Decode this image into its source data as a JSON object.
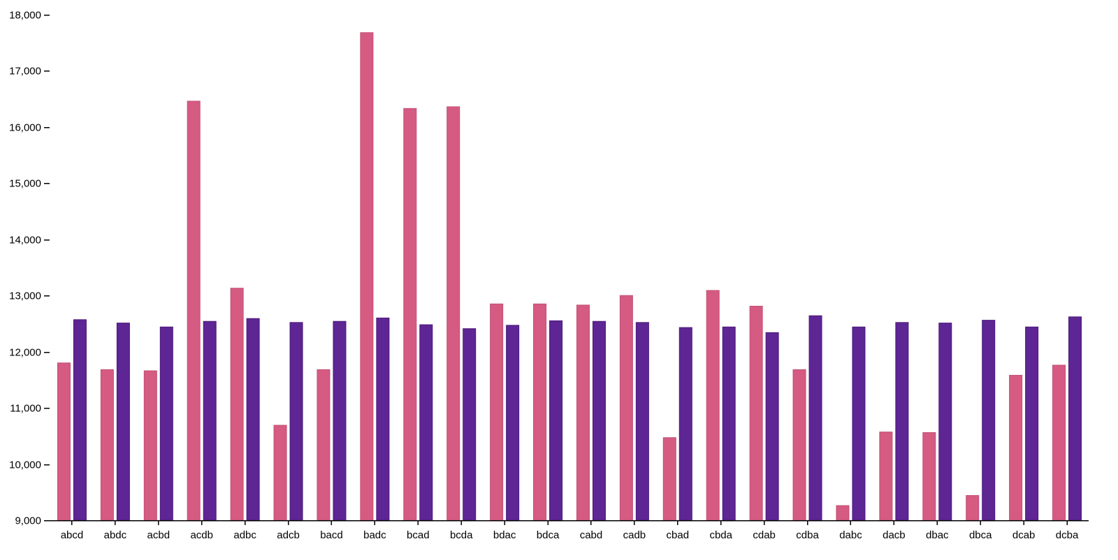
{
  "colors": {
    "series_1": "#d55b82",
    "series_2": "#5e2594",
    "series_1_stroke": "#c24e75",
    "series_2_stroke": "#4a1a78"
  },
  "chart_data": {
    "type": "bar",
    "categories": [
      "abcd",
      "abdc",
      "acbd",
      "acdb",
      "adbc",
      "adcb",
      "bacd",
      "badc",
      "bcad",
      "bcda",
      "bdac",
      "bdca",
      "cabd",
      "cadb",
      "cbad",
      "cbda",
      "cdab",
      "cdba",
      "dabc",
      "dacb",
      "dbac",
      "dbca",
      "dcab",
      "dcba"
    ],
    "series": [
      {
        "values": [
          11800,
          11680,
          11660,
          16460,
          13130,
          10690,
          11680,
          17680,
          16330,
          16360,
          12850,
          12850,
          12830,
          13000,
          10470,
          13090,
          12810,
          11680,
          9260,
          10570,
          10560,
          9440,
          11580,
          11760
        ]
      },
      {
        "values": [
          12570,
          12510,
          12440,
          12540,
          12590,
          12520,
          12540,
          12600,
          12480,
          12410,
          12470,
          12550,
          12540,
          12520,
          12430,
          12440,
          12340,
          12640,
          12440,
          12520,
          12510,
          12560,
          12440,
          12620
        ]
      }
    ],
    "y_ticks": [
      "9,000",
      "10,000",
      "11,000",
      "12,000",
      "13,000",
      "14,000",
      "15,000",
      "16,000",
      "17,000",
      "18,000"
    ],
    "ylim": [
      9000,
      18000
    ],
    "grid": false,
    "legend": "none"
  }
}
